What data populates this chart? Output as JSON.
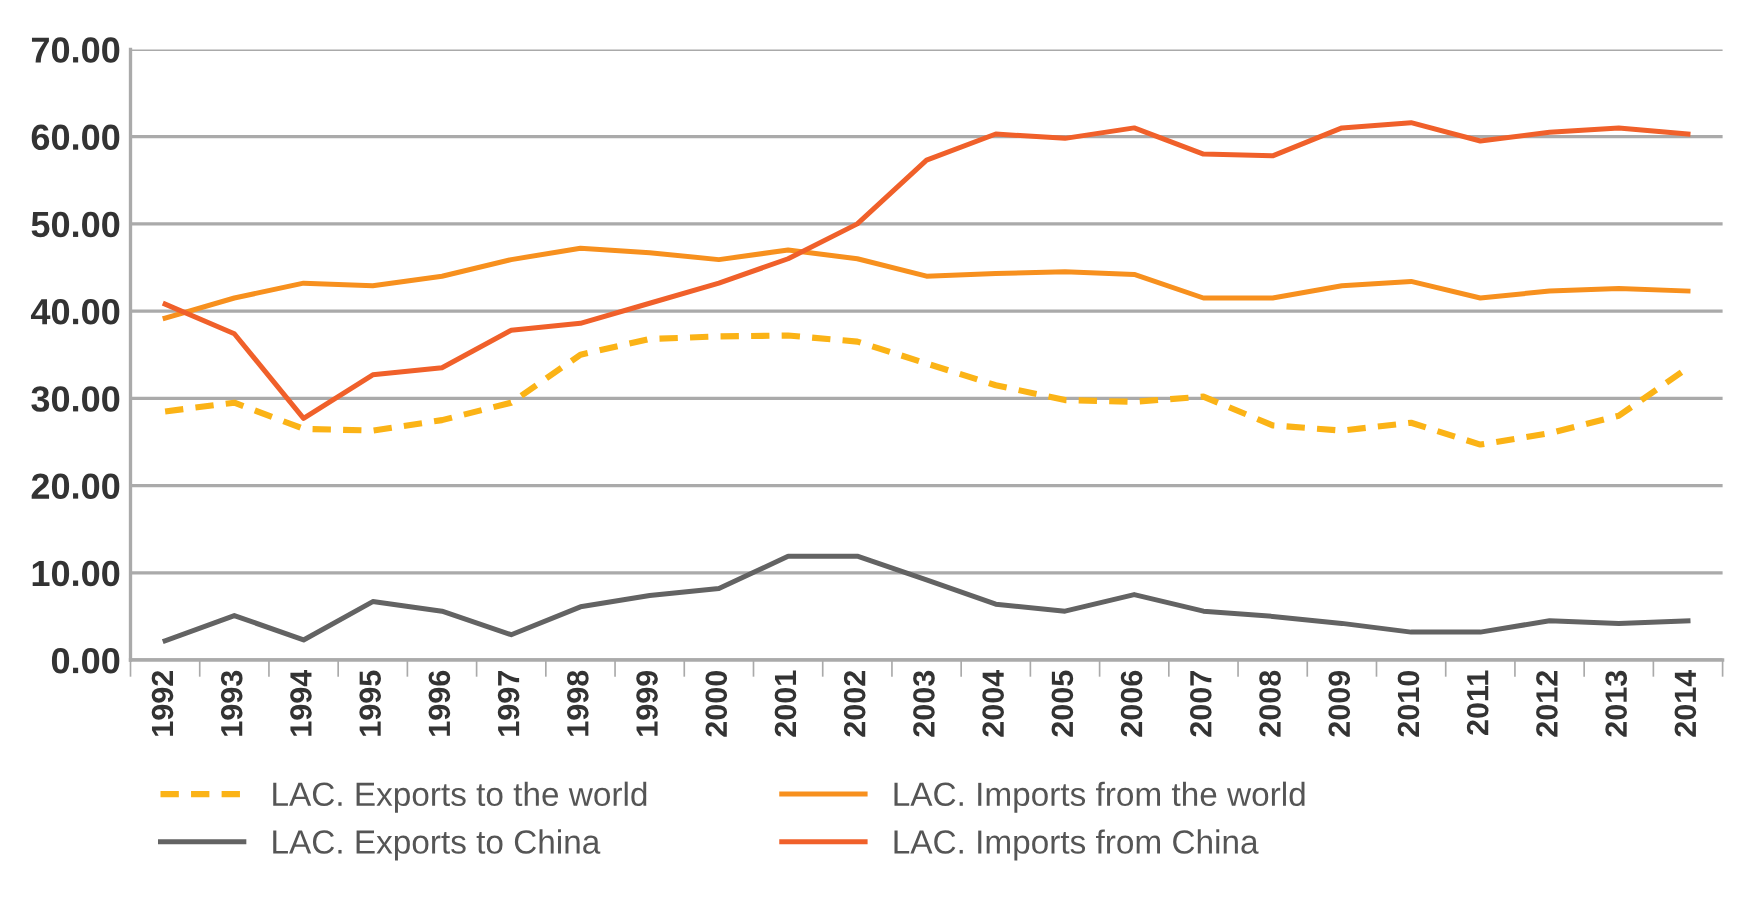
{
  "chart_data": {
    "type": "line",
    "categories": [
      "1992",
      "1993",
      "1994",
      "1995",
      "1996",
      "1997",
      "1998",
      "1999",
      "2000",
      "2001",
      "2002",
      "2003",
      "2004",
      "2005",
      "2006",
      "2007",
      "2008",
      "2009",
      "2010",
      "2011",
      "2012",
      "2013",
      "2014"
    ],
    "series": [
      {
        "name": "LAC. Exports to the world",
        "color": "#fbb316",
        "line_style": "dashed",
        "values": [
          28.5,
          29.5,
          26.5,
          26.3,
          27.5,
          29.5,
          35,
          36.8,
          37.1,
          37.2,
          36.5,
          34,
          31.5,
          29.8,
          29.6,
          30.2,
          26.9,
          26.3,
          27.2,
          24.7,
          26,
          28,
          33.5
        ]
      },
      {
        "name": "LAC. Exports to China",
        "color": "#636363",
        "line_style": "solid",
        "values": [
          2.2,
          5.1,
          2.3,
          6.7,
          5.6,
          2.9,
          6.1,
          7.4,
          8.2,
          11.9,
          11.9,
          9.2,
          6.4,
          5.6,
          7.5,
          5.6,
          5.0,
          4.2,
          3.2,
          3.2,
          4.5,
          4.2,
          4.5
        ]
      },
      {
        "name": "LAC. Imports from the world",
        "color": "#f7901e",
        "line_style": "solid",
        "values": [
          39.2,
          41.5,
          43.2,
          42.9,
          44,
          45.9,
          47.2,
          46.7,
          45.9,
          47,
          46,
          44,
          44.3,
          44.5,
          44.2,
          41.5,
          41.5,
          42.9,
          43.4,
          41.5,
          42.3,
          42.6,
          42.3
        ]
      },
      {
        "name": "LAC. Imports from China",
        "color": "#f0602a",
        "line_style": "solid",
        "values": [
          40.8,
          37.4,
          27.7,
          32.7,
          33.5,
          37.8,
          38.6,
          40.9,
          43.2,
          46,
          50,
          57.3,
          60.3,
          59.8,
          61,
          58,
          57.8,
          61,
          61.6,
          59.5,
          60.5,
          61,
          60.3
        ]
      }
    ],
    "ylim": [
      0,
      70
    ],
    "yticks": [
      {
        "value": 0,
        "label": "0.00"
      },
      {
        "value": 10,
        "label": "10.00"
      },
      {
        "value": 20,
        "label": "20.00"
      },
      {
        "value": 30,
        "label": "30.00"
      },
      {
        "value": 40,
        "label": "40.00"
      },
      {
        "value": 50,
        "label": "50.00"
      },
      {
        "value": 60,
        "label": "60.00"
      },
      {
        "value": 70,
        "label": "70.00"
      }
    ],
    "grid": "y",
    "legend": "bottom",
    "marker": "none"
  }
}
